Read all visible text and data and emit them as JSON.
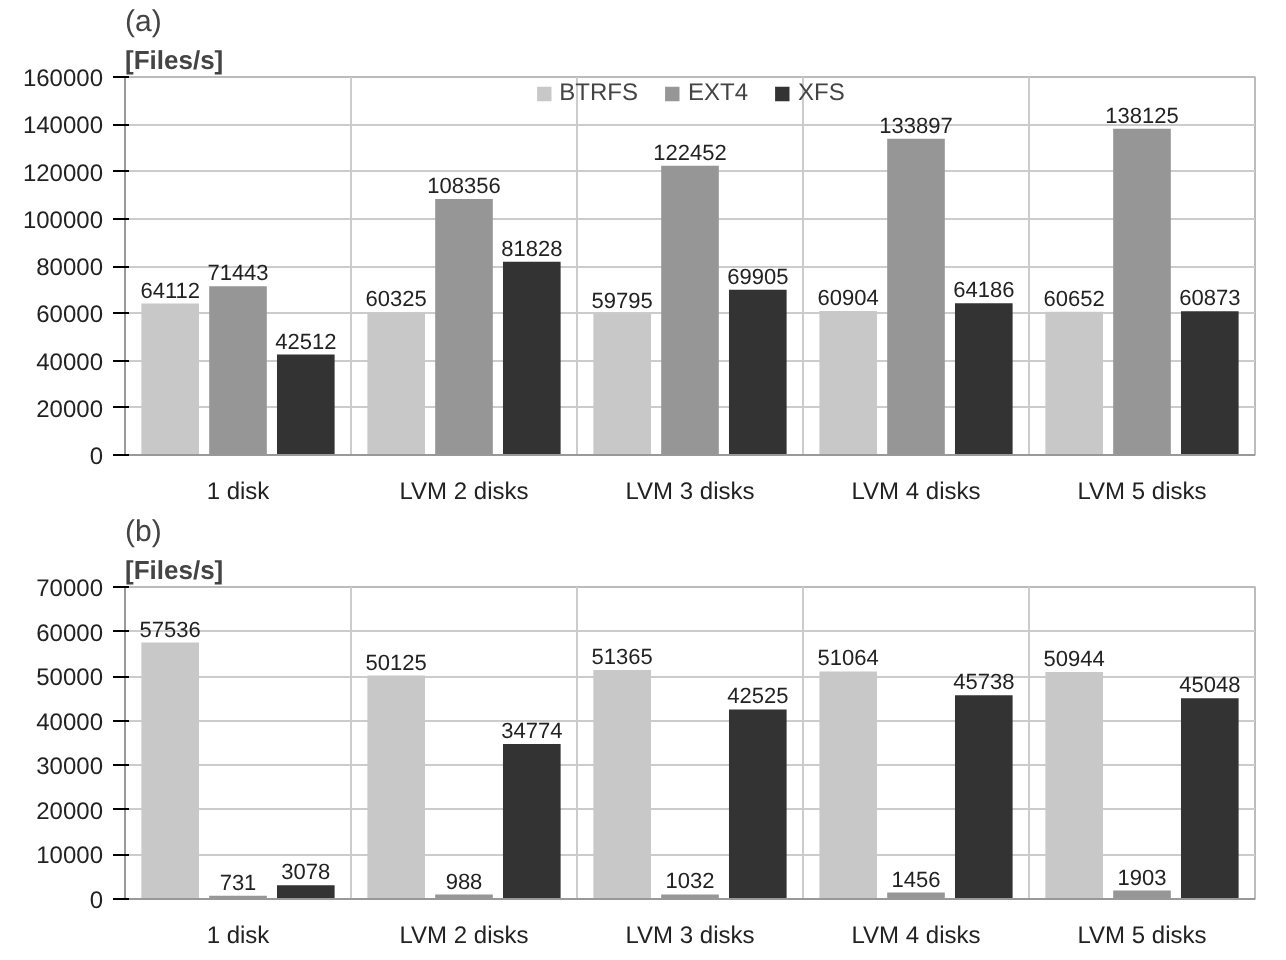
{
  "chart_data": [
    {
      "type": "bar",
      "title": "(a)",
      "ylabel": "[Files/s]",
      "categories": [
        "1 disk",
        "LVM 2 disks",
        "LVM 3 disks",
        "LVM 4 disks",
        "LVM 5 disks"
      ],
      "series": [
        {
          "name": "BTRFS",
          "color": "#c8c8c8",
          "values": [
            64112,
            60325,
            59795,
            60904,
            60652
          ]
        },
        {
          "name": "EXT4",
          "color": "#969696",
          "values": [
            71443,
            108356,
            122452,
            133897,
            138125
          ]
        },
        {
          "name": "XFS",
          "color": "#333333",
          "values": [
            42512,
            81828,
            69905,
            64186,
            60873
          ]
        }
      ],
      "ylim": [
        0,
        160000
      ],
      "yticks": [
        0,
        20000,
        40000,
        60000,
        80000,
        100000,
        120000,
        140000,
        160000
      ],
      "grid": true,
      "legend": "top",
      "data_labels": true
    },
    {
      "type": "bar",
      "title": "(b)",
      "ylabel": "[Files/s]",
      "categories": [
        "1 disk",
        "LVM 2 disks",
        "LVM 3 disks",
        "LVM 4 disks",
        "LVM 5 disks"
      ],
      "series": [
        {
          "color": "#c8c8c8",
          "values": [
            57536,
            50125,
            51365,
            51064,
            50944
          ]
        },
        {
          "color": "#969696",
          "values": [
            731,
            988,
            1032,
            1456,
            1903
          ]
        },
        {
          "color": "#333333",
          "values": [
            3078,
            34774,
            42525,
            45738,
            45048
          ]
        }
      ],
      "ylim": [
        0,
        70000
      ],
      "yticks": [
        0,
        10000,
        20000,
        30000,
        40000,
        50000,
        60000,
        70000
      ],
      "grid": true,
      "data_labels": true
    }
  ]
}
